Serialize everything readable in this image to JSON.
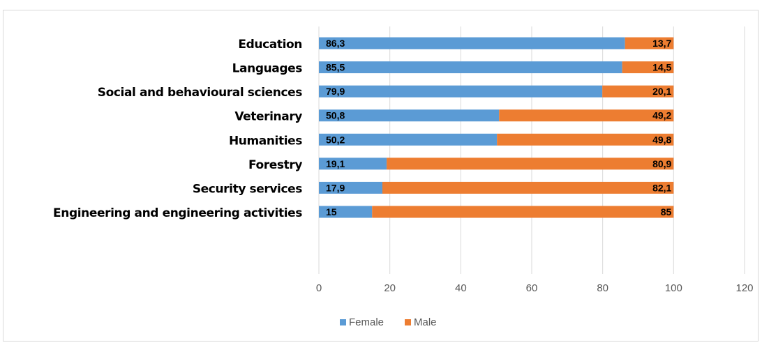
{
  "chart_data": {
    "type": "bar",
    "orientation": "horizontal",
    "stacked": true,
    "categories": [
      "Education",
      "Languages",
      "Social and behavioural sciences",
      "Veterinary",
      "Humanities",
      "Forestry",
      "Security services",
      "Engineering and engineering activities"
    ],
    "series": [
      {
        "name": "Female",
        "color": "#5b9bd5",
        "values": [
          86.3,
          85.5,
          79.9,
          50.8,
          50.2,
          19.1,
          17.9,
          15
        ],
        "labels": [
          "86,3",
          "85,5",
          "79,9",
          "50,8",
          "50,2",
          "19,1",
          "17,9",
          "15"
        ]
      },
      {
        "name": "Male",
        "color": "#ed7d31",
        "values": [
          13.7,
          14.5,
          20.1,
          49.2,
          49.8,
          80.9,
          82.1,
          85
        ],
        "labels": [
          "13,7",
          "14,5",
          "20,1",
          "49,2",
          "49,8",
          "80,9",
          "82,1",
          "85"
        ]
      }
    ],
    "xlim": [
      0,
      120
    ],
    "xticks": [
      "0",
      "20",
      "40",
      "60",
      "80",
      "100",
      "120"
    ],
    "grid": "vertical",
    "legend": "bottom"
  }
}
